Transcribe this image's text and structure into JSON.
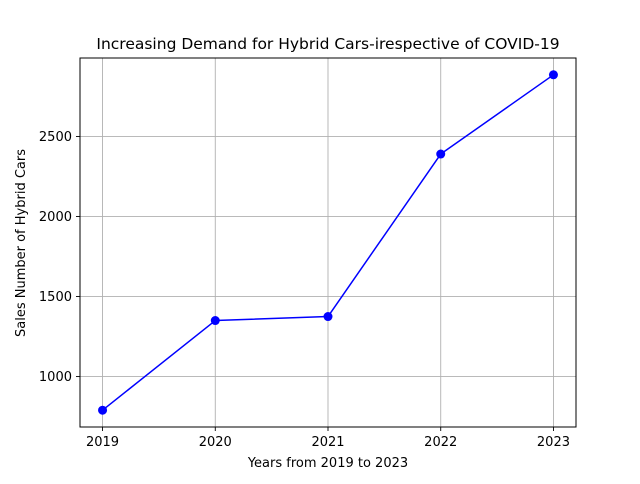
{
  "chart_data": {
    "type": "line",
    "title": "Increasing Demand for Hybrid Cars-irespective of COVID-19",
    "xlabel": "Years from 2019 to 2023",
    "ylabel": "Sales Number of Hybrid Cars",
    "x": [
      2019,
      2020,
      2021,
      2022,
      2023
    ],
    "series": [
      {
        "values": [
          790,
          1350,
          1375,
          2390,
          2885
        ],
        "color": "#0000ff",
        "marker": "circle"
      }
    ],
    "xlim": [
      2018.8,
      2023.2
    ],
    "ylim": [
      685,
      2990
    ],
    "xticks": [
      2019,
      2020,
      2021,
      2022,
      2023
    ],
    "yticks": [
      1000,
      1500,
      2000,
      2500
    ],
    "grid": true,
    "grid_color": "#b0b0b0"
  }
}
